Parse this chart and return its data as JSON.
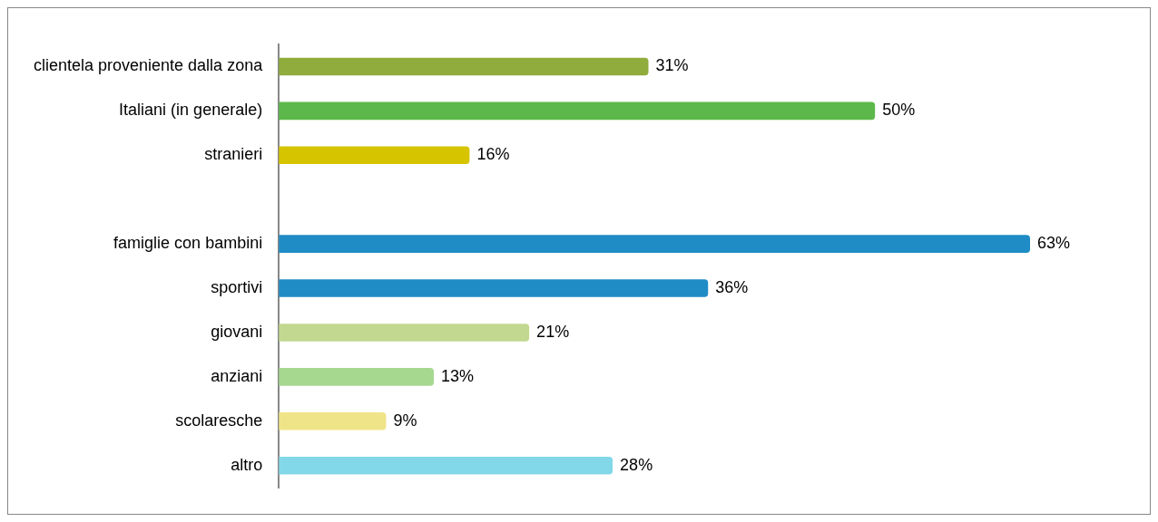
{
  "chart_data": {
    "type": "bar",
    "orientation": "horizontal",
    "categories": [
      "clientela proveniente dalla zona",
      "Italiani (in generale)",
      "stranieri",
      null,
      "famiglie con bambini",
      "sportivi",
      "giovani",
      "anziani",
      "scolaresche",
      "altro"
    ],
    "values": [
      31,
      50,
      16,
      null,
      63,
      36,
      21,
      13,
      9,
      28
    ],
    "colors": [
      "#8fac3c",
      "#5cb84a",
      "#d6c400",
      null,
      "#1f8cc6",
      "#1f8cc6",
      "#c2d890",
      "#a6d890",
      "#f0e488",
      "#82d8e8"
    ],
    "value_labels": [
      "31%",
      "50%",
      "16%",
      null,
      "63%",
      "36%",
      "21%",
      "13%",
      "9%",
      "28%"
    ],
    "legend": false
  }
}
